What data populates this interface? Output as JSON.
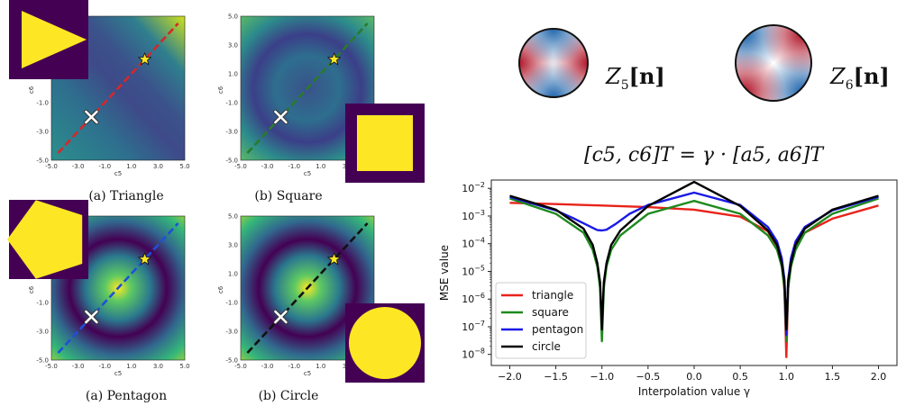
{
  "panels": [
    {
      "id": "triangle",
      "caption": "(a) Triangle",
      "line_color": "#d62728",
      "shape": "triangle",
      "inset_pos": "top-left",
      "basin": "split"
    },
    {
      "id": "square",
      "caption": "(b) Square",
      "line_color": "#2a7a2a",
      "shape": "square",
      "inset_pos": "bottom-right",
      "basin": "ring"
    },
    {
      "id": "pentagon",
      "caption": "(a) Pentagon",
      "line_color": "#1f4fd8",
      "shape": "pentagon",
      "inset_pos": "top-left",
      "basin": "ring"
    },
    {
      "id": "circle",
      "caption": "(b) Circle",
      "line_color": "#111111",
      "shape": "circle",
      "inset_pos": "bottom-right",
      "basin": "ring"
    }
  ],
  "small_axes": {
    "xlabel": "c5",
    "ylabel": "c6",
    "ticks": [
      "-5.0",
      "-3.0",
      "-1.0",
      "1.0",
      "3.0",
      "5.0"
    ],
    "tick_values": [
      -5,
      -3,
      -1,
      1,
      3,
      5
    ],
    "range": [
      -5,
      5
    ],
    "star_point": [
      2,
      2
    ],
    "cross_point": [
      -2,
      -2
    ]
  },
  "zernike": {
    "z5_label": "Z",
    "z5_sub": "5",
    "z5_arg": "[n]",
    "z6_label": "Z",
    "z6_sub": "6",
    "z6_arg": "[n]"
  },
  "equation": "[c5, c6]T = γ · [a5, a6]T",
  "chart_data": {
    "type": "line",
    "xlabel": "Interpolation value γ",
    "ylabel": "MSE value",
    "xlim": [
      -2.2,
      2.2
    ],
    "ylog": true,
    "ylim_exp": [
      -8.4,
      -1.7
    ],
    "x_ticks": [
      -2.0,
      -1.5,
      -1.0,
      -0.5,
      0.0,
      0.5,
      1.0,
      1.5,
      2.0
    ],
    "x_tick_labels": [
      "−2.0",
      "−1.5",
      "−1.0",
      "−0.5",
      "0.0",
      "0.5",
      "1.0",
      "1.5",
      "2.0"
    ],
    "y_tick_exps": [
      -8,
      -7,
      -6,
      -5,
      -4,
      -3,
      -2
    ],
    "legend_position": "lower-left",
    "series": [
      {
        "name": "triangle",
        "color": "#e8231a",
        "x": [
          -2.0,
          -1.5,
          -1.0,
          -0.5,
          0.0,
          0.5,
          0.8,
          0.9,
          0.95,
          0.98,
          1.0,
          1.02,
          1.05,
          1.1,
          1.2,
          1.5,
          2.0
        ],
        "y": [
          0.003,
          0.0027,
          0.0024,
          0.0021,
          0.0017,
          0.00095,
          0.00028,
          8e-05,
          2e-05,
          2e-06,
          8e-09,
          2.5e-06,
          2.2e-05,
          9e-05,
          0.00025,
          0.0008,
          0.0024
        ]
      },
      {
        "name": "square",
        "color": "#1e8a1e",
        "x": [
          -2.0,
          -1.5,
          -1.2,
          -1.1,
          -1.05,
          -1.02,
          -1.0,
          -0.98,
          -0.95,
          -0.9,
          -0.8,
          -0.5,
          0.0,
          0.5,
          0.8,
          0.9,
          0.95,
          0.98,
          1.0,
          1.02,
          1.05,
          1.1,
          1.2,
          1.5,
          2.0
        ],
        "y": [
          0.0043,
          0.0012,
          0.00025,
          6e-05,
          1.5e-05,
          2.5e-06,
          3e-08,
          2.5e-06,
          1.5e-05,
          6e-05,
          0.0002,
          0.0012,
          0.0035,
          0.0012,
          0.0002,
          6e-05,
          1.5e-05,
          2.5e-06,
          3e-08,
          2.5e-06,
          1.5e-05,
          6e-05,
          0.00025,
          0.0012,
          0.0043
        ]
      },
      {
        "name": "pentagon",
        "color": "#1a1ae6",
        "x": [
          -2.0,
          -1.5,
          -1.3,
          -1.15,
          -1.05,
          -1.0,
          -0.95,
          -0.85,
          -0.7,
          -0.5,
          0.0,
          0.5,
          0.8,
          0.9,
          0.95,
          0.98,
          1.0,
          1.02,
          1.05,
          1.1,
          1.2,
          1.5,
          2.0
        ],
        "y": [
          0.0049,
          0.0016,
          0.0008,
          0.00045,
          0.00031,
          0.0003,
          0.00032,
          0.00052,
          0.0012,
          0.0025,
          0.007,
          0.0025,
          0.0004,
          0.00012,
          3e-05,
          5e-06,
          5e-08,
          5e-06,
          3e-05,
          0.00012,
          0.0004,
          0.0016,
          0.0049
        ]
      },
      {
        "name": "circle",
        "color": "#000000",
        "x": [
          -2.0,
          -1.5,
          -1.2,
          -1.1,
          -1.05,
          -1.02,
          -1.0,
          -0.98,
          -0.95,
          -0.9,
          -0.8,
          -0.5,
          0.0,
          0.5,
          0.8,
          0.9,
          0.95,
          0.98,
          1.0,
          1.02,
          1.05,
          1.1,
          1.2,
          1.5,
          2.0
        ],
        "y": [
          0.0054,
          0.0017,
          0.00035,
          9e-05,
          2e-05,
          4e-06,
          8e-08,
          4e-06,
          2e-05,
          9e-05,
          0.0003,
          0.0023,
          0.017,
          0.0023,
          0.0003,
          9e-05,
          2e-05,
          4e-06,
          8e-08,
          4e-06,
          2e-05,
          9e-05,
          0.00035,
          0.0017,
          0.0054
        ]
      }
    ]
  }
}
